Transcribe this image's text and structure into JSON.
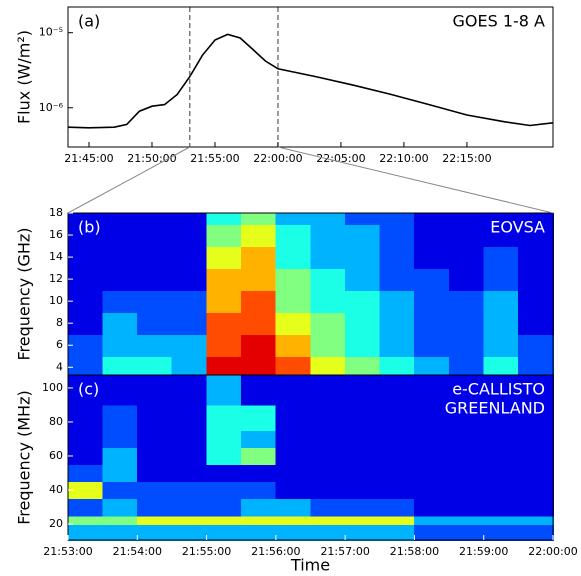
{
  "chart_data": [
    {
      "type": "line",
      "panel_label": "(a)",
      "annotation": "GOES 1-8 A",
      "ylabel": "Flux (W/m²)",
      "log_y": true,
      "color": "#000000",
      "x": [
        "21:43:20",
        "21:45:00",
        "21:47:00",
        "21:48:00",
        "21:49:00",
        "21:50:00",
        "21:51:00",
        "21:52:00",
        "21:53:00",
        "21:54:00",
        "21:55:00",
        "21:56:00",
        "21:57:00",
        "21:58:00",
        "21:59:00",
        "22:00:00",
        "22:03:00",
        "22:06:00",
        "22:09:00",
        "22:12:00",
        "22:15:00",
        "22:18:00",
        "22:20:00",
        "22:21:50"
      ],
      "values": [
        5.5e-07,
        5.4e-07,
        5.5e-07,
        6e-07,
        9e-07,
        1.05e-06,
        1.1e-06,
        1.5e-06,
        2.6e-06,
        5e-06,
        8e-06,
        9.5e-06,
        8.5e-06,
        6e-06,
        4.2e-06,
        3.3e-06,
        2.6e-06,
        2e-06,
        1.5e-06,
        1.1e-06,
        8e-07,
        6.5e-07,
        5.8e-07,
        6.3e-07
      ],
      "xlim": [
        "21:43:20",
        "22:21:50"
      ],
      "xticks": [
        "21:45:00",
        "21:50:00",
        "21:55:00",
        "22:00:00",
        "22:05:00",
        "22:10:00",
        "22:15:00"
      ],
      "ylim": [
        3e-07,
        2.2e-05
      ],
      "yticks": [
        {
          "value": 1e-06,
          "label": "10⁻⁶"
        },
        {
          "value": 1e-05,
          "label": "10⁻⁵"
        }
      ],
      "vlines": [
        "21:53:00",
        "22:00:00"
      ]
    },
    {
      "type": "heatmap",
      "panel_label": "(b)",
      "annotation": [
        "EOVSA"
      ],
      "ylabel": "Frequency (GHz)",
      "colormap": "jet",
      "zlim": [
        0,
        10
      ],
      "xlim": [
        "21:53:00",
        "22:00:00"
      ],
      "xbins": [
        "21:53:00",
        "21:53:30",
        "21:54:00",
        "21:54:30",
        "21:55:00",
        "21:55:30",
        "21:56:00",
        "21:56:30",
        "21:57:00",
        "21:57:30",
        "21:58:00",
        "21:58:30",
        "21:59:00",
        "21:59:30",
        "22:00:00"
      ],
      "ybins": [
        3.3,
        5,
        7,
        9,
        11,
        13,
        15,
        17,
        18
      ],
      "ylim": [
        3.3,
        18
      ],
      "yticks": [
        4,
        6,
        8,
        10,
        12,
        14,
        16,
        18
      ],
      "z": [
        [
          2,
          4,
          4,
          3,
          9,
          9,
          8,
          6,
          5,
          4,
          3,
          2,
          4,
          2
        ],
        [
          2,
          3,
          3,
          3,
          8,
          9,
          7,
          5,
          4,
          3,
          2,
          2,
          3,
          2
        ],
        [
          1,
          3,
          2,
          2,
          8,
          8,
          6,
          5,
          4,
          3,
          2,
          2,
          3,
          1
        ],
        [
          1,
          2,
          2,
          2,
          7,
          8,
          5,
          4,
          4,
          3,
          2,
          2,
          3,
          1
        ],
        [
          1,
          1,
          1,
          1,
          7,
          7,
          5,
          4,
          3,
          2,
          2,
          1,
          2,
          1
        ],
        [
          1,
          1,
          1,
          1,
          6,
          7,
          4,
          3,
          3,
          2,
          1,
          1,
          2,
          1
        ],
        [
          1,
          1,
          1,
          1,
          5,
          6,
          4,
          3,
          3,
          2,
          1,
          1,
          1,
          1
        ],
        [
          1,
          1,
          1,
          1,
          4,
          5,
          3,
          3,
          2,
          2,
          1,
          1,
          1,
          1
        ]
      ]
    },
    {
      "type": "heatmap",
      "panel_label": "(c)",
      "annotation": [
        "e-CALLISTO",
        "GREENLAND"
      ],
      "ylabel": "Frequency (MHz)",
      "xlabel": "Time",
      "colormap": "jet",
      "zlim": [
        0,
        10
      ],
      "xlim": [
        "21:53:00",
        "22:00:00"
      ],
      "xticks": [
        "21:53:00",
        "21:54:00",
        "21:55:00",
        "21:56:00",
        "21:57:00",
        "21:58:00",
        "21:59:00",
        "22:00:00"
      ],
      "xbins": [
        "21:53:00",
        "21:53:30",
        "21:54:00",
        "21:54:30",
        "21:55:00",
        "21:55:30",
        "21:56:00",
        "21:56:30",
        "21:57:00",
        "21:57:30",
        "21:58:00",
        "21:58:30",
        "21:59:00",
        "21:59:30",
        "22:00:00"
      ],
      "ybins": [
        10.6,
        20,
        25,
        35,
        45,
        55,
        65,
        75,
        90,
        107.6
      ],
      "ylim": [
        10.6,
        107.6
      ],
      "yticks": [
        20,
        40,
        60,
        80,
        100
      ],
      "z": [
        [
          3,
          3,
          3,
          3,
          3,
          3,
          3,
          3,
          3,
          3,
          2,
          2,
          2,
          2
        ],
        [
          5,
          5,
          6,
          6,
          6,
          6,
          6,
          6,
          6,
          6,
          3,
          3,
          3,
          3
        ],
        [
          2,
          3,
          2,
          2,
          2,
          3,
          3,
          2,
          2,
          2,
          1,
          1,
          1,
          1
        ],
        [
          6,
          2,
          2,
          2,
          2,
          2,
          1,
          1,
          1,
          1,
          1,
          1,
          1,
          1
        ],
        [
          2,
          3,
          1,
          1,
          1,
          1,
          1,
          1,
          1,
          1,
          1,
          1,
          1,
          1
        ],
        [
          1,
          3,
          1,
          1,
          4,
          5,
          1,
          1,
          1,
          1,
          1,
          1,
          1,
          1
        ],
        [
          1,
          2,
          1,
          1,
          4,
          3,
          1,
          1,
          1,
          1,
          1,
          1,
          1,
          1
        ],
        [
          1,
          2,
          1,
          1,
          4,
          4,
          1,
          1,
          1,
          1,
          1,
          1,
          1,
          1
        ],
        [
          1,
          1,
          1,
          1,
          3,
          1,
          1,
          1,
          1,
          1,
          1,
          1,
          1,
          1
        ]
      ]
    }
  ]
}
